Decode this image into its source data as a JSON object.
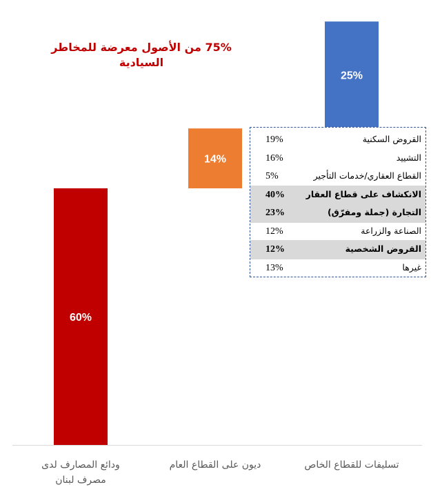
{
  "chart_data": {
    "type": "bar",
    "categories": [
      "ودائع المصارف لدى مصرف لبنان",
      "ديون على القطاع العام",
      "تسليفات للقطاع الخاص"
    ],
    "values": [
      60,
      14,
      25
    ],
    "labels": [
      "60%",
      "14%",
      "25%"
    ],
    "colors": [
      "#c00000",
      "#ed7d31",
      "#4472c4"
    ],
    "category_lines": [
      [
        "ودائع المصارف لدى",
        "مصرف لبنان"
      ],
      [
        "ديون على القطاع العام"
      ],
      [
        "تسليفات للقطاع الخاص"
      ]
    ],
    "stacking": "waterfall",
    "grid": false,
    "legend": "none",
    "annotation": {
      "lines": [
        "75% من الأصول معرضة للمخاطر",
        "السيادية"
      ],
      "color": "#c00000"
    },
    "breakdown": [
      {
        "pct": "19%",
        "label": "القروض السكنية",
        "highlight": false
      },
      {
        "pct": "16%",
        "label": "التشييد",
        "highlight": false
      },
      {
        "pct": "5%",
        "label": "القطاع العقاري/خدمات التأجير",
        "highlight": false
      },
      {
        "pct": "40%",
        "label": "الانكشاف على قطاع العقار",
        "highlight": true
      },
      {
        "pct": "23%",
        "label": "التجارة (جملة ومفرّق)",
        "highlight": true
      },
      {
        "pct": "12%",
        "label": "الصناعة والزراعة",
        "highlight": false
      },
      {
        "pct": "12%",
        "label": "القروض الشخصية",
        "highlight": true
      },
      {
        "pct": "13%",
        "label": "غيرها",
        "highlight": false
      }
    ]
  }
}
